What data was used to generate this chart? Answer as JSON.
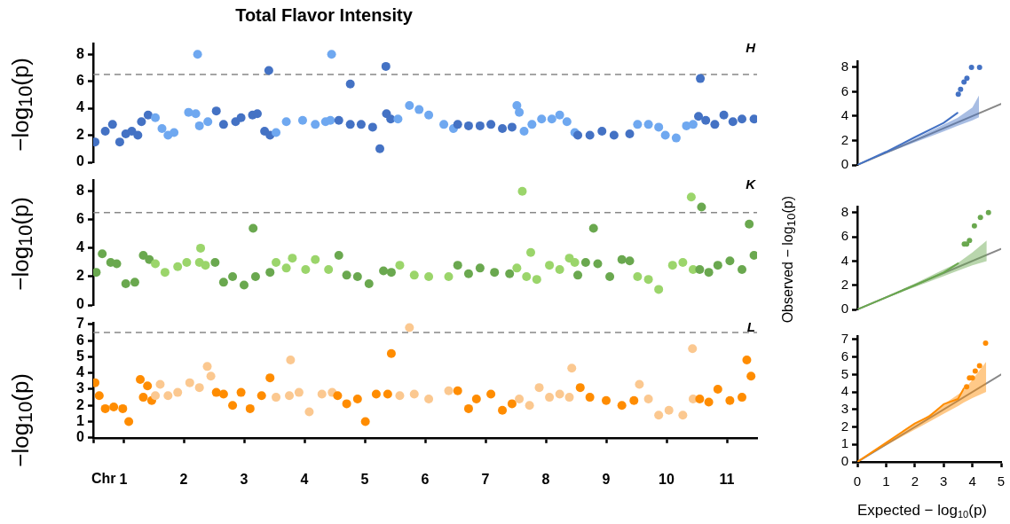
{
  "chart_data": [
    {
      "type": "scatter",
      "title": "Total Flavor Intensity",
      "ylabel": "−log$_{10}$(p)",
      "xlim": [
        0.5,
        11.5
      ],
      "ylim": [
        0,
        8.8
      ],
      "yticks": [
        0,
        2,
        4,
        6,
        8
      ],
      "tick_labels": "y",
      "grid": false,
      "legend": false,
      "marker": "circle",
      "annotations": [
        "H"
      ],
      "ref_lines": [
        {
          "axis": "y",
          "value": 6.5,
          "color": "#888888",
          "line_style": "dashed"
        }
      ],
      "series": [
        {
          "color": "#4472c4",
          "x": [
            0.53,
            0.7,
            0.82,
            0.94,
            1.04,
            1.14,
            1.24,
            1.3,
            1.41
          ],
          "values": [
            1.5,
            2.3,
            2.8,
            1.5,
            2.1,
            2.3,
            2.0,
            3.0,
            3.5
          ]
        },
        {
          "color": "#6fa8f0",
          "x": [
            1.53,
            1.64,
            1.74,
            1.84,
            2.08,
            2.2,
            2.23,
            2.26,
            2.4
          ],
          "values": [
            3.3,
            2.5,
            2.0,
            2.2,
            3.7,
            3.6,
            8.0,
            2.7,
            3.0
          ]
        },
        {
          "color": "#4472c4",
          "x": [
            2.54,
            2.66,
            2.86,
            2.95,
            3.14,
            3.22,
            3.34,
            3.41,
            3.43
          ],
          "values": [
            3.8,
            2.8,
            3.0,
            3.3,
            3.5,
            3.6,
            2.3,
            6.8,
            2.0
          ]
        },
        {
          "color": "#6fa8f0",
          "x": [
            3.53,
            3.7,
            3.97,
            4.18,
            4.35,
            4.43,
            4.45
          ],
          "values": [
            2.2,
            3.0,
            3.1,
            2.8,
            3.0,
            3.1,
            8.0
          ]
        },
        {
          "color": "#4472c4",
          "x": [
            4.57,
            4.76,
            4.76,
            4.94,
            5.13,
            5.25,
            5.35,
            5.36,
            5.43
          ],
          "values": [
            3.1,
            2.8,
            5.8,
            2.8,
            2.6,
            1.0,
            7.1,
            3.6,
            3.2
          ]
        },
        {
          "color": "#6fa8f0",
          "x": [
            5.55,
            5.74,
            5.9,
            6.06,
            6.31,
            6.47
          ],
          "values": [
            3.2,
            4.2,
            3.9,
            3.5,
            2.8,
            2.5
          ]
        },
        {
          "color": "#4472c4",
          "x": [
            6.54,
            6.72,
            6.91,
            7.09,
            7.28,
            7.44
          ],
          "values": [
            2.8,
            2.7,
            2.7,
            2.8,
            2.5,
            2.6
          ]
        },
        {
          "color": "#6fa8f0",
          "x": [
            7.52,
            7.56,
            7.64,
            7.77,
            7.93,
            8.1,
            8.23,
            8.35,
            8.48
          ],
          "values": [
            4.2,
            3.7,
            2.3,
            2.8,
            3.2,
            3.2,
            3.5,
            3.0,
            2.2
          ]
        },
        {
          "color": "#4472c4",
          "x": [
            8.53,
            8.73,
            8.93,
            9.13,
            9.39
          ],
          "values": [
            2.0,
            2.0,
            2.3,
            2.0,
            2.1
          ]
        },
        {
          "color": "#6fa8f0",
          "x": [
            9.52,
            9.7,
            9.87,
            9.98,
            10.16,
            10.33,
            10.44
          ],
          "values": [
            2.8,
            2.8,
            2.6,
            2.0,
            1.8,
            2.7,
            2.8
          ]
        },
        {
          "color": "#4472c4",
          "x": [
            10.53,
            10.56,
            10.65,
            10.8,
            10.95,
            11.1,
            11.25,
            11.45
          ],
          "values": [
            3.4,
            6.2,
            3.1,
            2.8,
            3.5,
            3.0,
            3.2,
            3.2
          ]
        }
      ]
    },
    {
      "type": "scatter",
      "ylabel": "−log$_{10}$(p)",
      "xlim": [
        0.5,
        11.5
      ],
      "ylim": [
        0,
        8.8
      ],
      "yticks": [
        0,
        2,
        4,
        6,
        8
      ],
      "tick_labels": "y",
      "grid": false,
      "legend": false,
      "marker": "circle",
      "annotations": [
        "K"
      ],
      "ref_lines": [
        {
          "axis": "y",
          "value": 6.5,
          "color": "#888888",
          "line_style": "dashed"
        }
      ],
      "series": [
        {
          "color": "#6aa84f",
          "x": [
            0.55,
            0.65,
            0.79,
            0.89,
            1.04,
            1.19,
            1.33,
            1.43
          ],
          "values": [
            2.3,
            3.6,
            3.0,
            2.9,
            1.5,
            1.6,
            3.5,
            3.2
          ]
        },
        {
          "color": "#9bd56b",
          "x": [
            1.53,
            1.69,
            1.9,
            2.05,
            2.26,
            2.28,
            2.36
          ],
          "values": [
            2.9,
            2.3,
            2.7,
            3.0,
            3.0,
            4.0,
            2.8
          ]
        },
        {
          "color": "#6aa84f",
          "x": [
            2.52,
            2.66,
            2.81,
            3.0,
            3.15,
            3.19,
            3.43
          ],
          "values": [
            3.0,
            1.6,
            2.0,
            1.4,
            5.4,
            2.0,
            2.3
          ]
        },
        {
          "color": "#9bd56b",
          "x": [
            3.53,
            3.7,
            3.8,
            4.02,
            4.18,
            4.4
          ],
          "values": [
            3.0,
            2.6,
            3.3,
            2.5,
            3.2,
            2.5
          ]
        },
        {
          "color": "#6aa84f",
          "x": [
            4.57,
            4.7,
            4.88,
            5.07,
            5.31,
            5.44
          ],
          "values": [
            3.5,
            2.1,
            2.0,
            1.5,
            2.4,
            2.3
          ]
        },
        {
          "color": "#9bd56b",
          "x": [
            5.58,
            5.82,
            6.06,
            6.39
          ],
          "values": [
            2.8,
            2.1,
            2.0,
            2.0
          ]
        },
        {
          "color": "#6aa84f",
          "x": [
            6.54,
            6.72,
            6.91,
            7.15,
            7.4
          ],
          "values": [
            2.8,
            2.2,
            2.6,
            2.3,
            2.2
          ]
        },
        {
          "color": "#9bd56b",
          "x": [
            7.52,
            7.61,
            7.68,
            7.75,
            7.85,
            8.06,
            8.23,
            8.39,
            8.48
          ],
          "values": [
            2.6,
            8.0,
            2.0,
            3.7,
            1.8,
            2.8,
            2.5,
            3.3,
            3.0
          ]
        },
        {
          "color": "#6aa84f",
          "x": [
            8.53,
            8.66,
            8.79,
            8.86,
            9.06,
            9.26,
            9.39
          ],
          "values": [
            2.1,
            3.0,
            5.4,
            2.9,
            2.0,
            3.2,
            3.1
          ]
        },
        {
          "color": "#9bd56b",
          "x": [
            9.52,
            9.7,
            9.87,
            10.1,
            10.27,
            10.41,
            10.44
          ],
          "values": [
            2.0,
            1.8,
            1.1,
            2.8,
            3.0,
            7.6,
            2.5
          ]
        },
        {
          "color": "#6aa84f",
          "x": [
            10.55,
            10.58,
            10.7,
            10.85,
            11.05,
            11.25,
            11.37,
            11.45
          ],
          "values": [
            2.5,
            6.9,
            2.3,
            2.8,
            3.1,
            2.5,
            5.7,
            3.5
          ]
        }
      ]
    },
    {
      "type": "scatter",
      "ylabel": "−log$_{10}$(p)",
      "xlabel": "Chr",
      "xlim": [
        0.5,
        11.5
      ],
      "xticks": [
        {
          "value": 0.5,
          "label": null
        },
        1,
        2,
        3,
        4,
        5,
        6,
        7,
        8,
        9,
        10,
        11
      ],
      "ylim": [
        0,
        7.1
      ],
      "yticks": [
        0,
        1,
        2,
        3,
        4,
        5,
        6,
        7
      ],
      "grid": false,
      "legend": false,
      "marker": "circle",
      "annotations": [
        "L"
      ],
      "ref_lines": [
        {
          "axis": "y",
          "value": 6.5,
          "color": "#888888",
          "line_style": "dashed"
        }
      ],
      "series": [
        {
          "color": "#ff8c00",
          "x": [
            0.53,
            0.6,
            0.7,
            0.84,
            0.99,
            1.09,
            1.28,
            1.33,
            1.4,
            1.47
          ],
          "values": [
            3.4,
            2.6,
            1.8,
            1.9,
            1.8,
            1.0,
            3.6,
            2.5,
            3.2,
            2.3
          ]
        },
        {
          "color": "#fbc890",
          "x": [
            1.53,
            1.61,
            1.74,
            1.9,
            2.1,
            2.26,
            2.39,
            2.45
          ],
          "values": [
            2.6,
            3.3,
            2.6,
            2.8,
            3.4,
            3.1,
            4.4,
            3.8
          ]
        },
        {
          "color": "#ff8c00",
          "x": [
            2.54,
            2.66,
            2.81,
            2.95,
            3.1,
            3.29,
            3.43
          ],
          "values": [
            2.8,
            2.7,
            2.0,
            2.8,
            1.8,
            2.6,
            3.7
          ]
        },
        {
          "color": "#fbc890",
          "x": [
            3.53,
            3.75,
            3.77,
            3.91,
            4.08,
            4.29,
            4.46
          ],
          "values": [
            2.5,
            2.6,
            4.8,
            2.8,
            1.6,
            2.7,
            2.8
          ]
        },
        {
          "color": "#ff8c00",
          "x": [
            4.55,
            4.7,
            4.88,
            5.01,
            5.19,
            5.38,
            5.44
          ],
          "values": [
            2.6,
            2.1,
            2.4,
            1.0,
            2.7,
            2.7,
            5.2
          ]
        },
        {
          "color": "#fbc890",
          "x": [
            5.58,
            5.74,
            5.82,
            6.06,
            6.39
          ],
          "values": [
            2.6,
            6.8,
            2.7,
            2.4,
            2.9
          ]
        },
        {
          "color": "#ff8c00",
          "x": [
            6.54,
            6.72,
            6.85,
            7.09,
            7.28,
            7.44
          ],
          "values": [
            2.9,
            1.8,
            2.4,
            2.7,
            1.7,
            2.1
          ]
        },
        {
          "color": "#fbc890",
          "x": [
            7.56,
            7.73,
            7.89,
            8.06,
            8.23,
            8.39,
            8.43
          ],
          "values": [
            2.4,
            2.0,
            3.1,
            2.5,
            2.7,
            2.5,
            4.3
          ]
        },
        {
          "color": "#ff8c00",
          "x": [
            8.57,
            8.73,
            9.0,
            9.26,
            9.46
          ],
          "values": [
            3.1,
            2.5,
            2.3,
            2.0,
            2.3
          ]
        },
        {
          "color": "#fbc890",
          "x": [
            9.55,
            9.7,
            9.87,
            10.04,
            10.27,
            10.43,
            10.44
          ],
          "values": [
            3.3,
            2.4,
            1.4,
            1.7,
            1.4,
            5.5,
            2.4
          ]
        },
        {
          "color": "#ff8c00",
          "x": [
            10.55,
            10.7,
            10.85,
            11.05,
            11.25,
            11.33,
            11.4
          ],
          "values": [
            2.4,
            2.2,
            3.0,
            2.3,
            2.5,
            4.8,
            3.8
          ]
        }
      ]
    },
    {
      "type": "scatter",
      "xlim": [
        0,
        5
      ],
      "ylim": [
        0,
        8.5
      ],
      "yticks": [
        0,
        2,
        4,
        6,
        8
      ],
      "tick_labels": "y",
      "grid": false,
      "legend": false,
      "marker": "circle",
      "series": [
        {
          "type": "line",
          "marker": "none",
          "color": "#888888",
          "x": [
            0,
            5
          ],
          "values": [
            0,
            5
          ]
        },
        {
          "type": "line",
          "marker": "none",
          "color": "#4472c4",
          "x": [
            0,
            1,
            2,
            3,
            3.48,
            4,
            4.23
          ],
          "values": [
            0,
            1.07,
            2.27,
            3.44,
            4.26,
            null,
            null
          ],
          "lower": [
            0,
            0.95,
            1.85,
            2.75,
            3.2,
            3.65,
            3.9
          ],
          "upper": [
            0,
            1.05,
            2.15,
            3.3,
            3.85,
            4.7,
            5.7
          ]
        },
        {
          "color": "#4472c4",
          "x": [
            3.51,
            3.59,
            3.71,
            3.81,
            3.97,
            4.25
          ],
          "values": [
            5.8,
            6.2,
            6.8,
            7.1,
            8.0,
            8.0
          ]
        }
      ]
    },
    {
      "type": "scatter",
      "ylabel": "Observed − log$_{10}$(p)",
      "xlim": [
        0,
        5
      ],
      "ylim": [
        0,
        8.5
      ],
      "yticks": [
        0,
        2,
        4,
        6,
        8
      ],
      "tick_labels": "y",
      "grid": false,
      "legend": false,
      "marker": "circle",
      "series": [
        {
          "type": "line",
          "marker": "none",
          "color": "#888888",
          "x": [
            0,
            5
          ],
          "values": [
            0,
            5
          ]
        },
        {
          "type": "line",
          "marker": "none",
          "color": "#6aa84f",
          "x": [
            0,
            1,
            2,
            3,
            3.5,
            4,
            4.5
          ],
          "values": [
            0,
            1.0,
            2.0,
            3.05,
            3.8,
            null,
            null
          ],
          "lower": [
            0,
            0.95,
            1.85,
            2.75,
            3.2,
            3.65,
            4.0
          ],
          "upper": [
            0,
            1.05,
            2.15,
            3.3,
            3.85,
            4.7,
            5.7
          ]
        },
        {
          "color": "#6aa84f",
          "x": [
            3.72,
            3.8,
            3.9,
            4.07,
            4.28,
            4.56
          ],
          "values": [
            5.4,
            5.4,
            5.7,
            6.9,
            7.6,
            8.0
          ]
        }
      ]
    },
    {
      "type": "scatter",
      "xlabel": "Expected − log$_{10}$(p)",
      "xlim": [
        0,
        5
      ],
      "xticks": [
        0,
        1,
        2,
        3,
        4,
        5
      ],
      "ylim": [
        0,
        7.2
      ],
      "yticks": [
        0,
        1,
        2,
        3,
        4,
        5,
        6,
        7
      ],
      "grid": false,
      "legend": false,
      "marker": "circle",
      "series": [
        {
          "type": "line",
          "marker": "none",
          "color": "#888888",
          "x": [
            0,
            5
          ],
          "values": [
            0,
            5
          ]
        },
        {
          "type": "line",
          "marker": "none",
          "color": "#ff8c00",
          "x": [
            0,
            1,
            2,
            2.5,
            3,
            3.5,
            3.7,
            4,
            4.48
          ],
          "values": [
            0,
            1.1,
            2.2,
            2.6,
            3.3,
            3.6,
            4.2,
            null,
            null
          ],
          "lower": [
            0,
            0.95,
            1.85,
            2.3,
            2.75,
            3.2,
            3.4,
            3.65,
            4.0
          ],
          "upper": [
            0,
            1.05,
            2.15,
            2.7,
            3.3,
            3.85,
            4.1,
            4.7,
            5.73
          ]
        },
        {
          "color": "#ff8c00",
          "x": [
            3.8,
            3.9,
            4.0,
            4.1,
            4.25,
            4.46
          ],
          "values": [
            4.3,
            4.8,
            4.8,
            5.2,
            5.5,
            6.8
          ]
        }
      ]
    }
  ]
}
